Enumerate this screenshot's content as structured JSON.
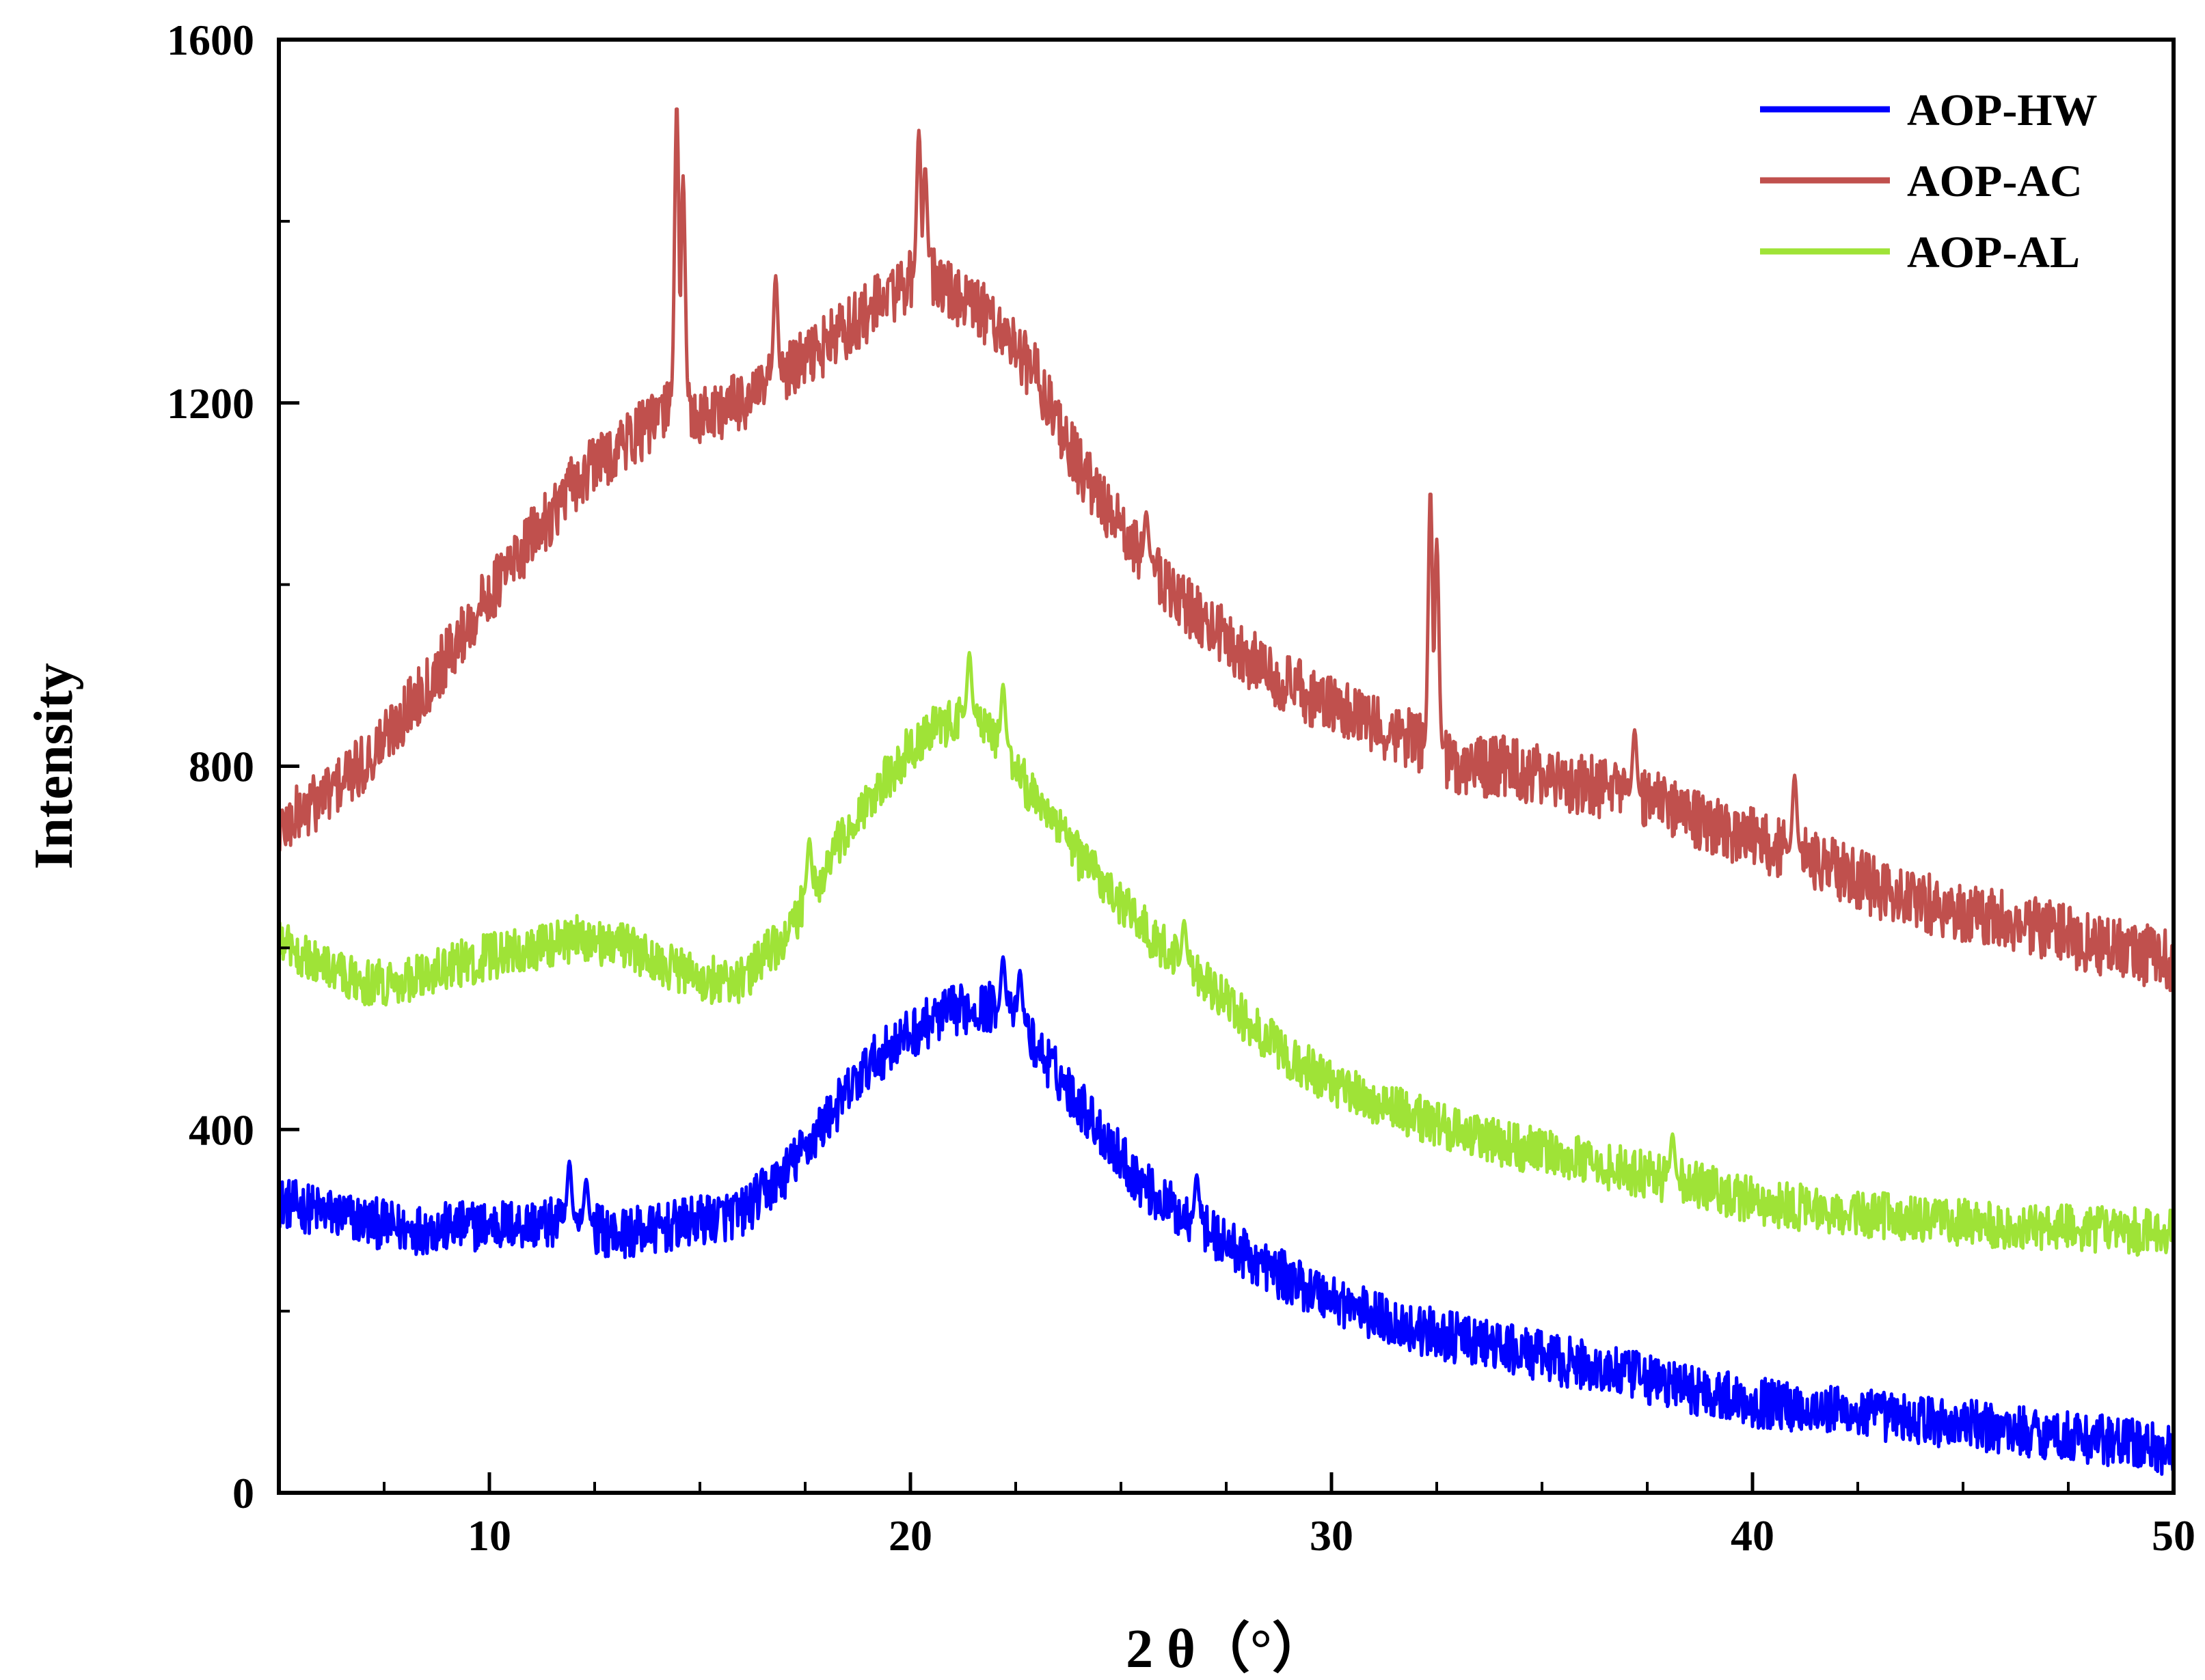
{
  "chart_data": {
    "type": "line",
    "xlabel": "2 θ（°）",
    "ylabel": "Intensity",
    "xlim": [
      5,
      50
    ],
    "ylim": [
      0,
      1600
    ],
    "xticks": [
      10,
      20,
      30,
      40,
      50
    ],
    "yticks": [
      0,
      400,
      800,
      1200,
      1600
    ],
    "x_minor_step": 2.5,
    "y_minor_step": 200,
    "grid": false,
    "legend_position": "top-right",
    "series": [
      {
        "name": "AOP-HW",
        "color": "#0000ff",
        "points": [
          [
            5,
            320
          ],
          [
            6,
            310
          ],
          [
            7,
            300
          ],
          [
            8,
            290
          ],
          [
            9,
            292
          ],
          [
            10,
            295
          ],
          [
            11,
            296
          ],
          [
            12,
            298
          ],
          [
            13,
            285
          ],
          [
            14,
            290
          ],
          [
            15,
            300
          ],
          [
            16,
            308
          ],
          [
            16.5,
            330
          ],
          [
            17,
            350
          ],
          [
            17.5,
            380
          ],
          [
            18,
            410
          ],
          [
            18.5,
            440
          ],
          [
            19,
            470
          ],
          [
            19.5,
            490
          ],
          [
            20,
            505
          ],
          [
            20.5,
            520
          ],
          [
            21,
            530
          ],
          [
            21.5,
            535
          ],
          [
            22,
            535
          ],
          [
            22.5,
            520
          ],
          [
            23,
            490
          ],
          [
            23.5,
            460
          ],
          [
            24,
            430
          ],
          [
            24.5,
            400
          ],
          [
            25,
            370
          ],
          [
            25.5,
            340
          ],
          [
            26,
            320
          ],
          [
            26.5,
            305
          ],
          [
            27,
            290
          ],
          [
            27.5,
            275
          ],
          [
            28,
            260
          ],
          [
            29,
            235
          ],
          [
            30,
            215
          ],
          [
            31,
            195
          ],
          [
            32,
            180
          ],
          [
            33,
            170
          ],
          [
            34,
            160
          ],
          [
            35,
            150
          ],
          [
            36,
            140
          ],
          [
            37,
            130
          ],
          [
            38,
            120
          ],
          [
            39,
            110
          ],
          [
            40,
            100
          ],
          [
            41,
            95
          ],
          [
            42,
            90
          ],
          [
            43,
            85
          ],
          [
            44,
            80
          ],
          [
            45,
            75
          ],
          [
            46,
            70
          ],
          [
            47,
            65
          ],
          [
            48,
            60
          ],
          [
            49,
            55
          ],
          [
            50,
            45
          ]
        ],
        "spikes": [
          [
            11.9,
            365
          ],
          [
            12.3,
            345
          ],
          [
            22.2,
            590
          ],
          [
            22.6,
            575
          ],
          [
            26.8,
            350
          ]
        ]
      },
      {
        "name": "AOP-AC",
        "color": "#c0504d",
        "points": [
          [
            5,
            730
          ],
          [
            6,
            765
          ],
          [
            7,
            800
          ],
          [
            8,
            860
          ],
          [
            9,
            920
          ],
          [
            10,
            990
          ],
          [
            11,
            1050
          ],
          [
            12,
            1110
          ],
          [
            13,
            1150
          ],
          [
            14,
            1180
          ],
          [
            14.3,
            1200
          ],
          [
            15,
            1185
          ],
          [
            16,
            1200
          ],
          [
            17,
            1230
          ],
          [
            18,
            1265
          ],
          [
            19,
            1300
          ],
          [
            19.8,
            1330
          ],
          [
            20.5,
            1340
          ],
          [
            21,
            1320
          ],
          [
            22,
            1290
          ],
          [
            23,
            1230
          ],
          [
            23.5,
            1180
          ],
          [
            24,
            1130
          ],
          [
            25,
            1060
          ],
          [
            26,
            1000
          ],
          [
            27,
            960
          ],
          [
            28,
            920
          ],
          [
            29,
            890
          ],
          [
            30,
            865
          ],
          [
            31,
            845
          ],
          [
            31.5,
            835
          ],
          [
            32,
            830
          ],
          [
            32.7,
            810
          ],
          [
            33,
            800
          ],
          [
            34,
            800
          ],
          [
            35,
            790
          ],
          [
            36,
            780
          ],
          [
            37,
            770
          ],
          [
            38,
            755
          ],
          [
            39,
            735
          ],
          [
            40,
            720
          ],
          [
            41,
            705
          ],
          [
            42,
            685
          ],
          [
            43,
            665
          ],
          [
            44,
            650
          ],
          [
            45,
            640
          ],
          [
            46,
            630
          ],
          [
            47,
            620
          ],
          [
            48,
            605
          ],
          [
            49,
            595
          ],
          [
            50,
            585
          ]
        ],
        "spikes": [
          [
            14.45,
            1530
          ],
          [
            14.6,
            1450
          ],
          [
            20.2,
            1500
          ],
          [
            20.35,
            1460
          ],
          [
            32.35,
            1105
          ],
          [
            32.5,
            1050
          ],
          [
            16.8,
            1340
          ],
          [
            25.6,
            1080
          ],
          [
            37.2,
            840
          ],
          [
            41,
            790
          ]
        ]
      },
      {
        "name": "AOP-AL",
        "color": "#9fe337",
        "points": [
          [
            5,
            610
          ],
          [
            6,
            580
          ],
          [
            7,
            560
          ],
          [
            8,
            565
          ],
          [
            9,
            580
          ],
          [
            10,
            590
          ],
          [
            11,
            600
          ],
          [
            12,
            610
          ],
          [
            13,
            605
          ],
          [
            14,
            585
          ],
          [
            15,
            565
          ],
          [
            16,
            565
          ],
          [
            16.5,
            590
          ],
          [
            17,
            610
          ],
          [
            17.5,
            650
          ],
          [
            18,
            690
          ],
          [
            18.5,
            730
          ],
          [
            19,
            760
          ],
          [
            19.5,
            790
          ],
          [
            20,
            820
          ],
          [
            20.5,
            840
          ],
          [
            21,
            850
          ],
          [
            21.5,
            855
          ],
          [
            22,
            835
          ],
          [
            22.5,
            800
          ],
          [
            23,
            760
          ],
          [
            24,
            700
          ],
          [
            25,
            650
          ],
          [
            26,
            600
          ],
          [
            27,
            560
          ],
          [
            28,
            520
          ],
          [
            29,
            480
          ],
          [
            30,
            450
          ],
          [
            31,
            430
          ],
          [
            32,
            415
          ],
          [
            33,
            400
          ],
          [
            34,
            385
          ],
          [
            35,
            375
          ],
          [
            36,
            365
          ],
          [
            37,
            355
          ],
          [
            38,
            345
          ],
          [
            39,
            335
          ],
          [
            40,
            322
          ],
          [
            41,
            315
          ],
          [
            42,
            310
          ],
          [
            43,
            305
          ],
          [
            44,
            300
          ],
          [
            45,
            298
          ],
          [
            46,
            295
          ],
          [
            47,
            292
          ],
          [
            48,
            290
          ],
          [
            49,
            288
          ],
          [
            50,
            285
          ]
        ],
        "spikes": [
          [
            21.4,
            925
          ],
          [
            22.2,
            890
          ],
          [
            17.6,
            720
          ],
          [
            26.5,
            630
          ],
          [
            38.1,
            395
          ]
        ]
      }
    ]
  }
}
